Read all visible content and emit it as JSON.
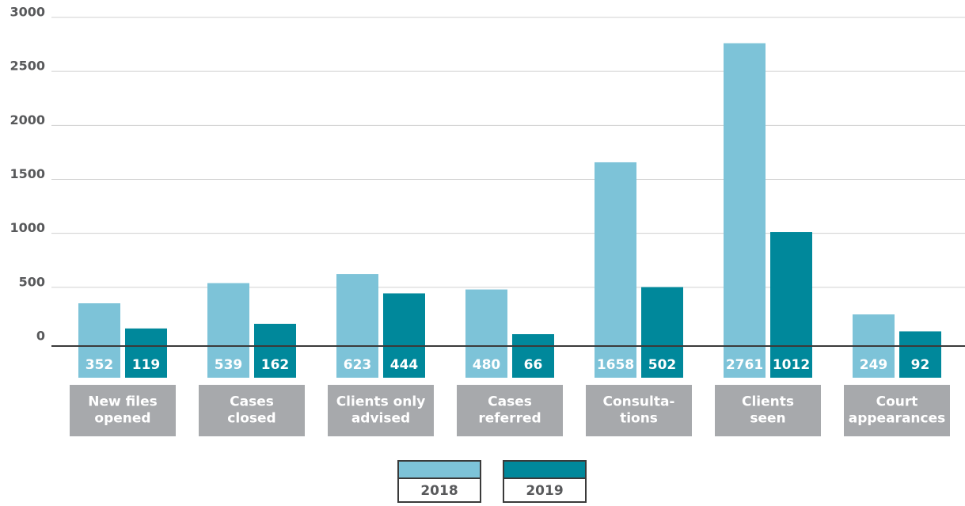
{
  "chart_data": {
    "type": "bar",
    "categories": [
      [
        "New files",
        "opened"
      ],
      [
        "Cases",
        "closed"
      ],
      [
        "Clients only",
        "advised"
      ],
      [
        "Cases",
        "referred"
      ],
      [
        "Consulta-",
        "tions"
      ],
      [
        "Clients",
        "seen"
      ],
      [
        "Court",
        "appearances"
      ]
    ],
    "series": [
      {
        "name": "2018",
        "color": "#7dc3d8",
        "values": [
          352,
          539,
          623,
          480,
          1658,
          2761,
          249
        ]
      },
      {
        "name": "2019",
        "color": "#00889b",
        "values": [
          119,
          162,
          444,
          66,
          502,
          1012,
          92
        ]
      }
    ],
    "ylim": [
      0,
      3000
    ],
    "yticks": [
      0,
      500,
      1000,
      1500,
      2000,
      2500,
      3000
    ],
    "grid": true
  }
}
